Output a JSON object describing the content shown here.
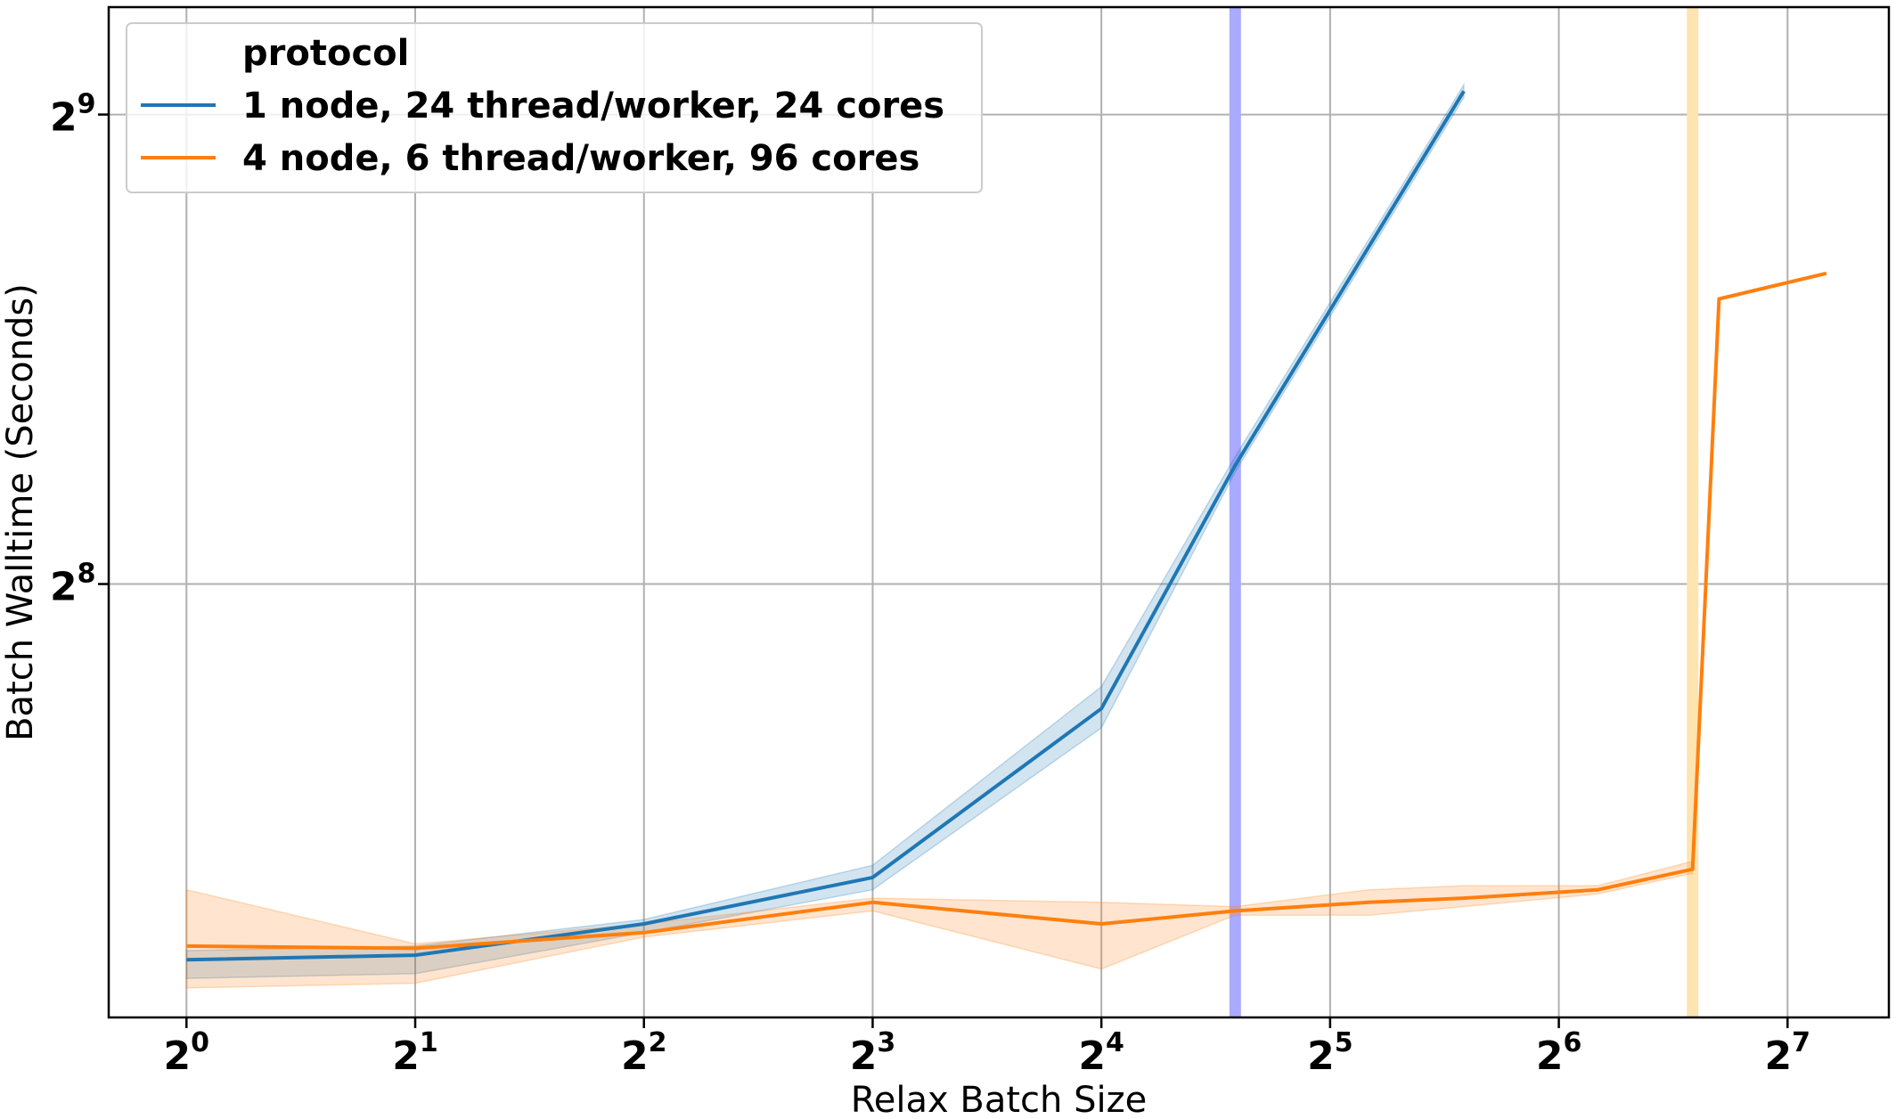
{
  "chart_data": {
    "type": "line",
    "title": "",
    "xlabel": "Relax Batch Size",
    "ylabel": "Batch Walltime (Seconds)",
    "x_scale": "log2",
    "y_scale": "log2",
    "xlim": [
      0.79,
      174
    ],
    "ylim": [
      135,
      600
    ],
    "grid": true,
    "x_ticks": [
      {
        "value": 1,
        "base": "2",
        "exp": "0"
      },
      {
        "value": 2,
        "base": "2",
        "exp": "1"
      },
      {
        "value": 4,
        "base": "2",
        "exp": "2"
      },
      {
        "value": 8,
        "base": "2",
        "exp": "3"
      },
      {
        "value": 16,
        "base": "2",
        "exp": "4"
      },
      {
        "value": 32,
        "base": "2",
        "exp": "5"
      },
      {
        "value": 64,
        "base": "2",
        "exp": "6"
      },
      {
        "value": 128,
        "base": "2",
        "exp": "7"
      }
    ],
    "y_ticks": [
      {
        "value": 256,
        "base": "2",
        "exp": "8"
      },
      {
        "value": 512,
        "base": "2",
        "exp": "9"
      }
    ],
    "legend": {
      "title": "protocol",
      "location": "upper left"
    },
    "series": [
      {
        "name": "1 node, 24 thread/worker, 24 cores",
        "color": "#1f77b4",
        "x": [
          1,
          2,
          4,
          8,
          16,
          24,
          48
        ],
        "y": [
          147,
          148,
          155,
          166,
          213,
          305,
          530
        ],
        "ci_low": [
          143,
          144,
          153,
          163,
          207,
          302,
          525
        ],
        "ci_high": [
          149,
          150,
          156,
          169,
          220,
          309,
          535
        ]
      },
      {
        "name": "4 node, 6 thread/worker, 96 cores",
        "color": "#ff7f0e",
        "x": [
          1,
          2,
          4,
          8,
          16,
          24,
          36,
          48,
          72,
          96,
          104,
          144
        ],
        "y": [
          150,
          149.5,
          153,
          160,
          155,
          158,
          160,
          161,
          163,
          168,
          390,
          405
        ],
        "ci_low": [
          141,
          142,
          152,
          158,
          145,
          157,
          157,
          159,
          162,
          167,
          390,
          405
        ],
        "ci_high": [
          163,
          150.5,
          155,
          161,
          160,
          159,
          163,
          164,
          164,
          170,
          390,
          405
        ]
      }
    ],
    "vlines": [
      {
        "x": 24,
        "color": "#aaaaff"
      },
      {
        "x": 96,
        "color": "#fde4b0"
      }
    ]
  }
}
